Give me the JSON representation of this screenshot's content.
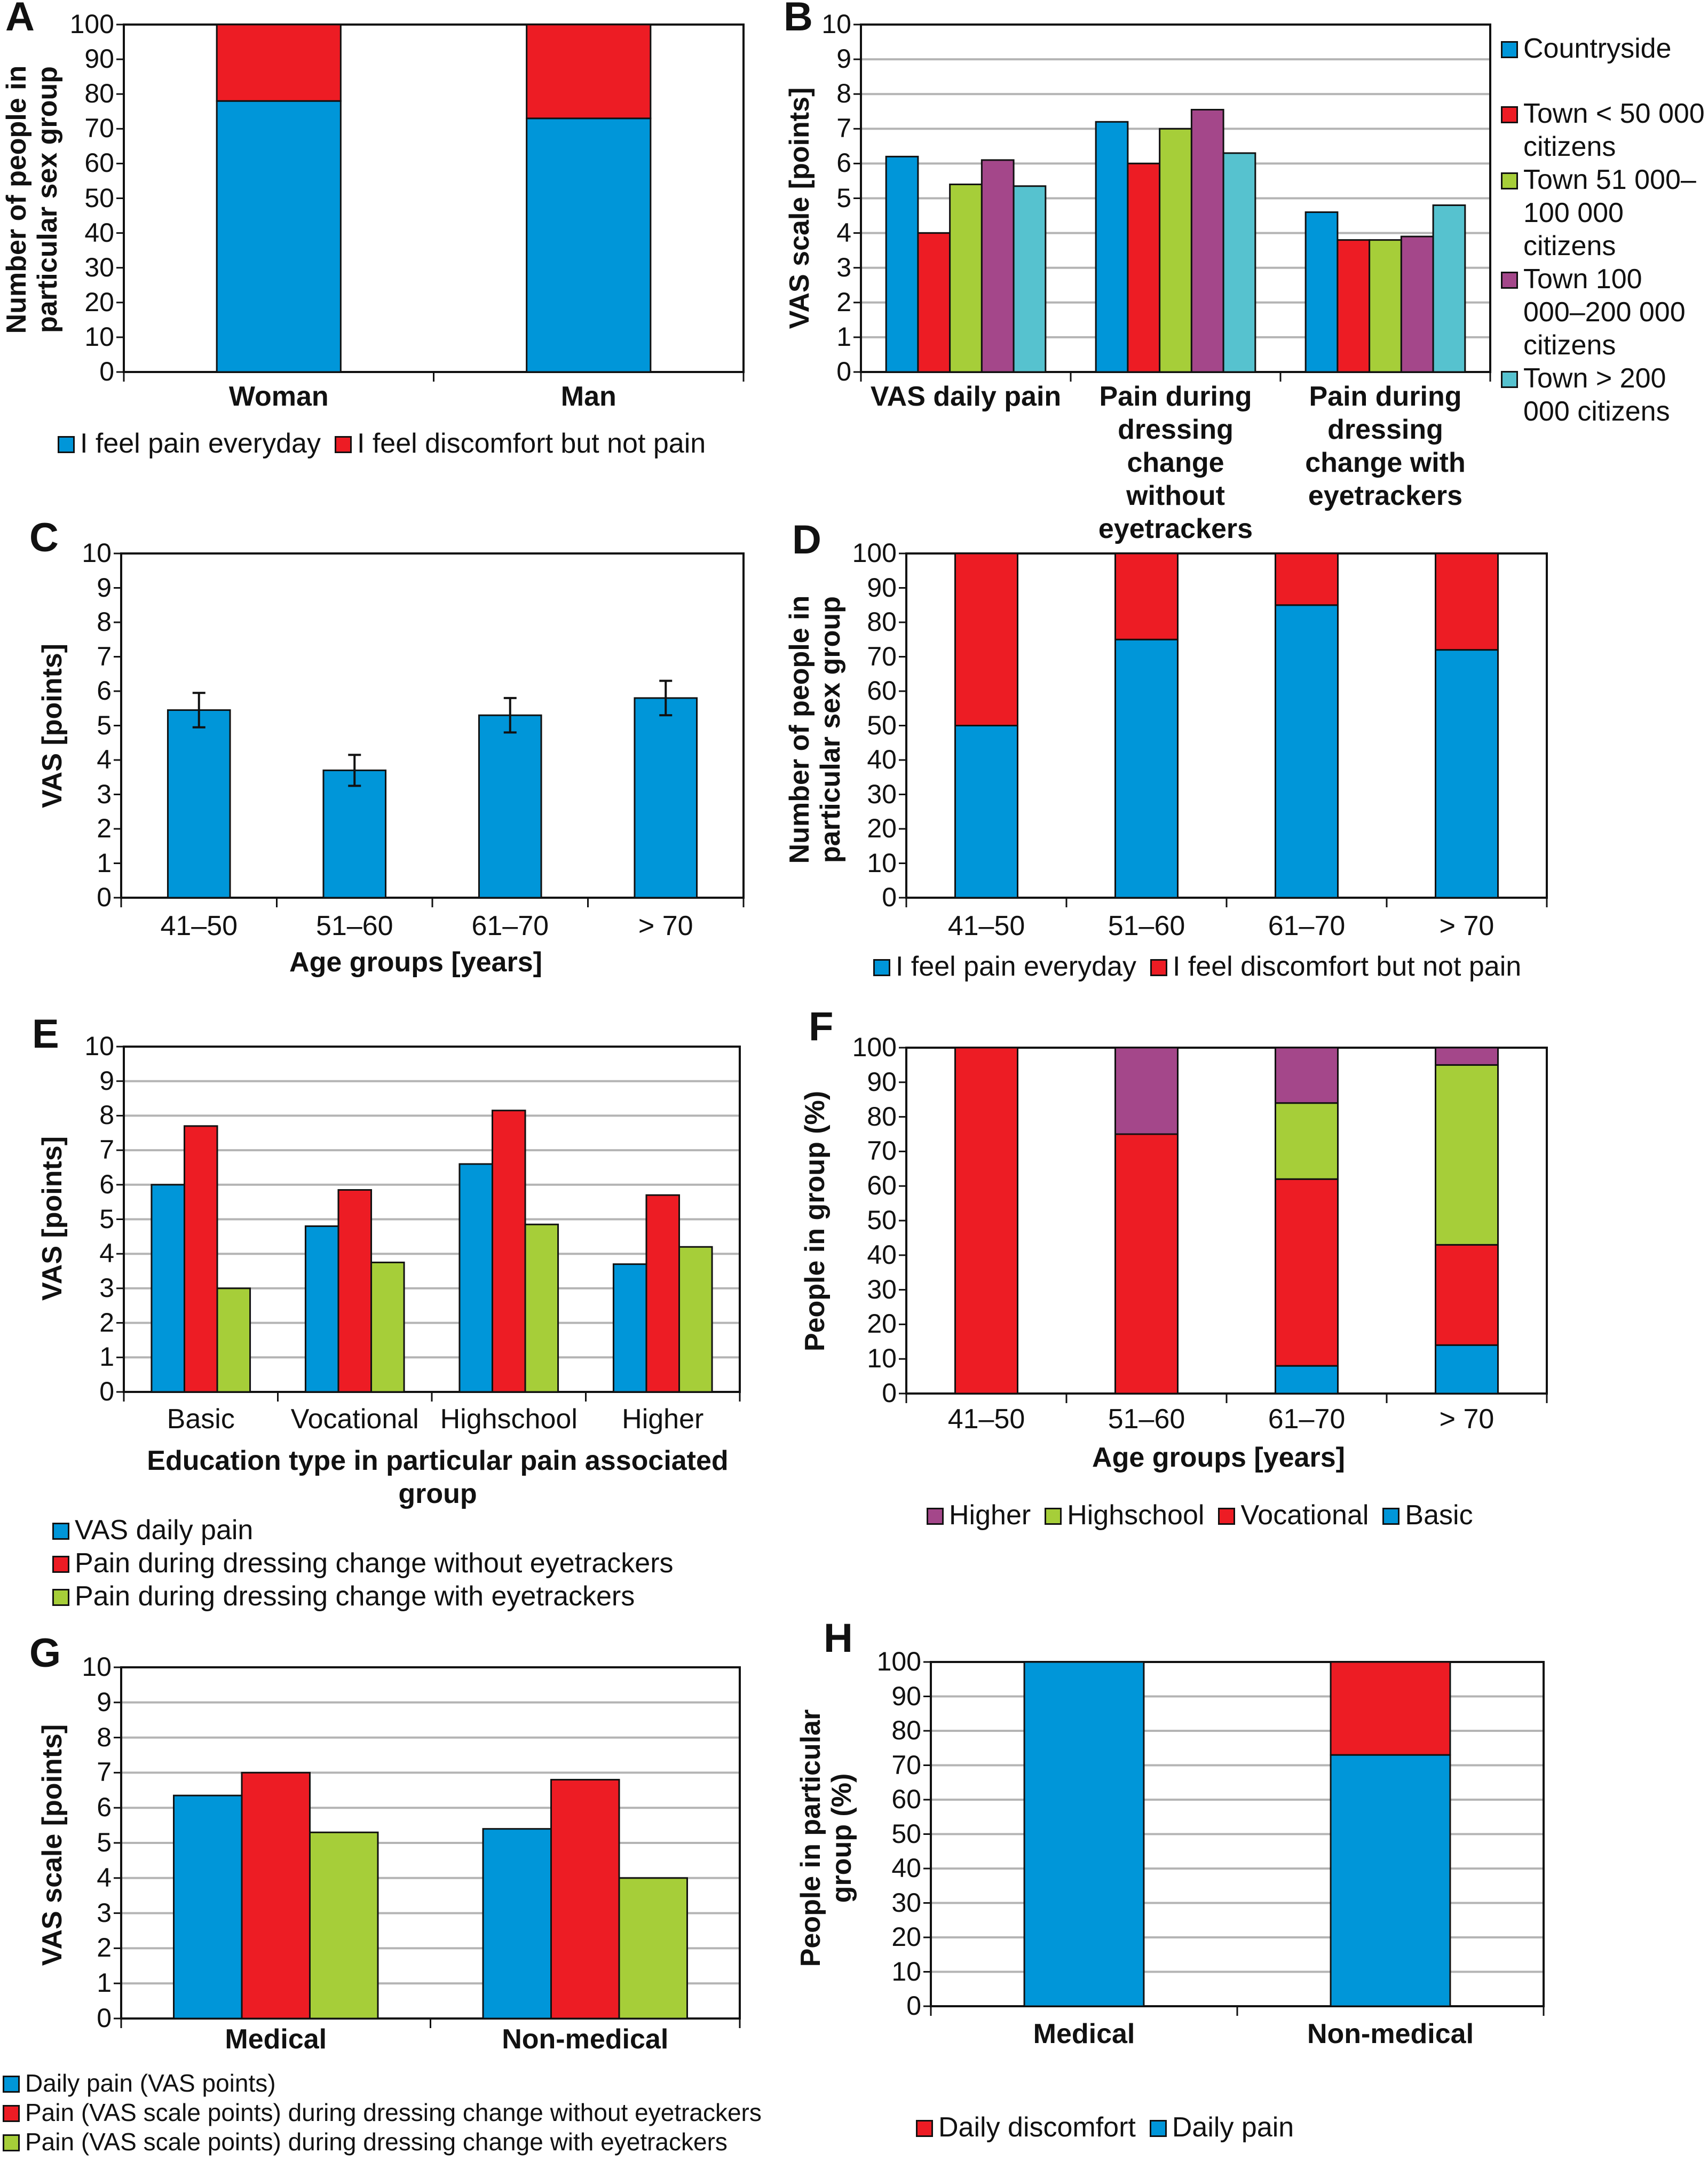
{
  "chart_data": [
    {
      "panel": "A",
      "type": "bar",
      "stacked": true,
      "categories": [
        "Woman",
        "Man"
      ],
      "ylabel": "Number of people in particular sex group",
      "xlabel": "",
      "ylim": [
        0,
        100
      ],
      "yticks": [
        0,
        10,
        20,
        30,
        40,
        50,
        60,
        70,
        80,
        90,
        100
      ],
      "grid": false,
      "series": [
        {
          "name": "I feel pain everyday",
          "color": "#0096d9",
          "values": [
            78,
            73
          ]
        },
        {
          "name": "I feel discomfort but not pain",
          "color": "#ed1c24",
          "values": [
            22,
            27
          ]
        }
      ],
      "legend_order": [
        0,
        1
      ],
      "legend_placement": "bottom"
    },
    {
      "panel": "B",
      "type": "bar",
      "stacked": false,
      "categories": [
        "VAS daily pain",
        "Pain during dressing change without eyetrackers",
        "Pain during dressing change with eyetrackers"
      ],
      "ylabel": "VAS scale [points]",
      "xlabel": "",
      "ylim": [
        0,
        10
      ],
      "yticks": [
        0,
        1,
        2,
        3,
        4,
        5,
        6,
        7,
        8,
        9,
        10
      ],
      "grid": true,
      "series": [
        {
          "name": "Countryside",
          "color": "#0096d9",
          "values": [
            6.2,
            7.2,
            4.6
          ]
        },
        {
          "name": "Town < 50 000 citizens",
          "color": "#ed1c24",
          "values": [
            4.0,
            6.0,
            3.8
          ]
        },
        {
          "name": "Town 51 000–100 000 citizens",
          "color": "#a6ce39",
          "values": [
            5.4,
            7.0,
            3.8
          ]
        },
        {
          "name": "Town 100 000–200 000 citizens",
          "color": "#a4478a",
          "values": [
            6.1,
            7.55,
            3.9
          ]
        },
        {
          "name": "Town > 200 000 citizens",
          "color": "#56c2cf",
          "values": [
            5.35,
            6.3,
            4.8
          ]
        }
      ],
      "legend_order": [
        0,
        1,
        2,
        3,
        4
      ],
      "legend_placement": "right"
    },
    {
      "panel": "C",
      "type": "bar",
      "stacked": false,
      "categories": [
        "41–50",
        "51–60",
        "61–70",
        "> 70"
      ],
      "ylabel": "VAS [points]",
      "xlabel": "Age groups [years]",
      "ylim": [
        0,
        10
      ],
      "yticks": [
        0,
        1,
        2,
        3,
        4,
        5,
        6,
        7,
        8,
        9,
        10
      ],
      "grid": false,
      "series": [
        {
          "name": "",
          "color": "#0096d9",
          "values": [
            5.45,
            3.7,
            5.3,
            5.8
          ],
          "errors": [
            0.5,
            0.45,
            0.5,
            0.5
          ]
        }
      ],
      "legend_order": []
    },
    {
      "panel": "D",
      "type": "bar",
      "stacked": true,
      "categories": [
        "41–50",
        "51–60",
        "61–70",
        "> 70"
      ],
      "ylabel": "Number of people in particular sex group",
      "xlabel": "",
      "ylim": [
        0,
        100
      ],
      "yticks": [
        0,
        10,
        20,
        30,
        40,
        50,
        60,
        70,
        80,
        90,
        100
      ],
      "grid": false,
      "series": [
        {
          "name": "I feel pain everyday",
          "color": "#0096d9",
          "values": [
            50,
            75,
            85,
            72
          ]
        },
        {
          "name": "I feel discomfort but not pain",
          "color": "#ed1c24",
          "values": [
            50,
            25,
            15,
            28
          ]
        }
      ],
      "legend_order": [
        0,
        1
      ],
      "legend_placement": "bottom"
    },
    {
      "panel": "E",
      "type": "bar",
      "stacked": false,
      "categories": [
        "Basic",
        "Vocational",
        "Highschool",
        "Higher"
      ],
      "ylabel": "VAS [points]",
      "xlabel": "Education type in particular pain associated group",
      "ylim": [
        0,
        10
      ],
      "yticks": [
        0,
        1,
        2,
        3,
        4,
        5,
        6,
        7,
        8,
        9,
        10
      ],
      "grid": true,
      "series": [
        {
          "name": "VAS daily pain",
          "color": "#0096d9",
          "values": [
            6.0,
            4.8,
            6.6,
            3.7
          ]
        },
        {
          "name": "Pain during dressing change without eyetrackers",
          "color": "#ed1c24",
          "values": [
            7.7,
            5.85,
            8.15,
            5.7
          ]
        },
        {
          "name": "Pain during dressing change with eyetrackers",
          "color": "#a6ce39",
          "values": [
            3.0,
            3.75,
            4.85,
            4.2
          ]
        }
      ],
      "legend_order": [
        0,
        1,
        2
      ],
      "legend_placement": "bottom"
    },
    {
      "panel": "F",
      "type": "bar",
      "stacked": true,
      "categories": [
        "41–50",
        "51–60",
        "61–70",
        "> 70"
      ],
      "ylabel": "People in group (%)",
      "xlabel": "Age groups [years]",
      "ylim": [
        0,
        100
      ],
      "yticks": [
        0,
        10,
        20,
        30,
        40,
        50,
        60,
        70,
        80,
        90,
        100
      ],
      "grid": false,
      "series": [
        {
          "name": "Basic",
          "color": "#0096d9",
          "values": [
            0,
            0,
            8,
            14
          ]
        },
        {
          "name": "Vocational",
          "color": "#ed1c24",
          "values": [
            100,
            75,
            54,
            29
          ]
        },
        {
          "name": "Highschool",
          "color": "#a6ce39",
          "values": [
            0,
            0,
            22,
            52
          ]
        },
        {
          "name": "Higher",
          "color": "#a4478a",
          "values": [
            0,
            25,
            16,
            5
          ]
        }
      ],
      "legend_order": [
        3,
        2,
        1,
        0
      ],
      "legend_placement": "bottom"
    },
    {
      "panel": "G",
      "type": "bar",
      "stacked": false,
      "categories": [
        "Medical",
        "Non-medical"
      ],
      "ylabel": "VAS scale [points]",
      "xlabel": "",
      "ylim": [
        0,
        10
      ],
      "yticks": [
        0,
        1,
        2,
        3,
        4,
        5,
        6,
        7,
        8,
        9,
        10
      ],
      "grid": true,
      "series": [
        {
          "name": "Daily pain (VAS points)",
          "color": "#0096d9",
          "values": [
            6.35,
            5.4
          ]
        },
        {
          "name": "Pain (VAS scale points) during dressing change without eyetrackers",
          "color": "#ed1c24",
          "values": [
            7.0,
            6.8
          ]
        },
        {
          "name": "Pain (VAS scale points) during dressing change with eyetrackers",
          "color": "#a6ce39",
          "values": [
            5.3,
            4.0
          ]
        }
      ],
      "legend_order": [
        0,
        1,
        2
      ],
      "legend_placement": "bottom"
    },
    {
      "panel": "H",
      "type": "bar",
      "stacked": true,
      "categories": [
        "Medical",
        "Non-medical"
      ],
      "ylabel": "People in particular group (%)",
      "xlabel": "",
      "ylim": [
        0,
        100
      ],
      "yticks": [
        0,
        10,
        20,
        30,
        40,
        50,
        60,
        70,
        80,
        90,
        100
      ],
      "grid": true,
      "series": [
        {
          "name": "Daily pain",
          "color": "#0096d9",
          "values": [
            100,
            73
          ]
        },
        {
          "name": "Daily discomfort",
          "color": "#ed1c24",
          "values": [
            0,
            27
          ]
        }
      ],
      "legend_order": [
        1,
        0
      ],
      "legend_placement": "bottom"
    }
  ]
}
